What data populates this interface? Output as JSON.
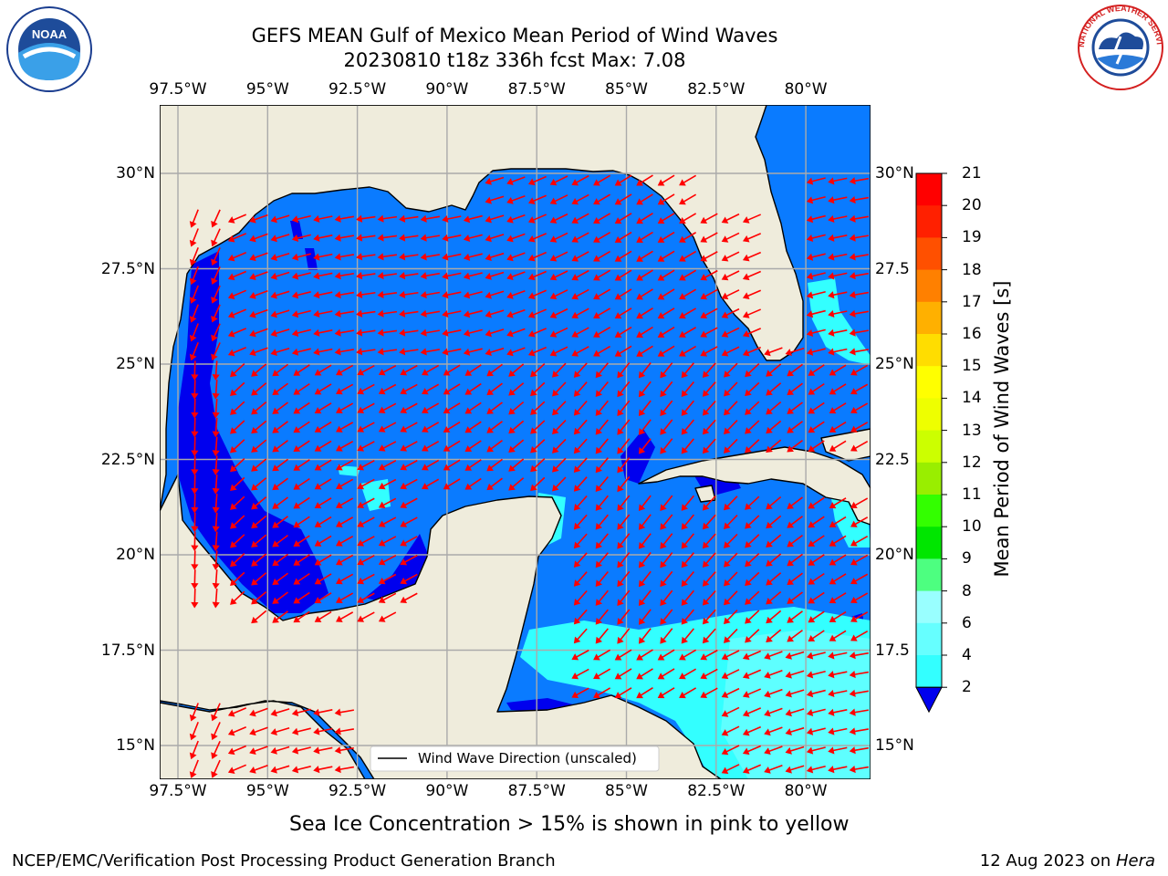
{
  "header": {
    "title_line1": "GEFS MEAN Gulf of Mexico Mean Period of Wind Waves",
    "title_line2": "20230810 t18z 336h fcst   Max: 7.08"
  },
  "logos": {
    "left": "NOAA",
    "right": "NATIONAL WEATHER SERVICE"
  },
  "map": {
    "lon_ticks": [
      "97.5°W",
      "95°W",
      "92.5°W",
      "90°W",
      "87.5°W",
      "85°W",
      "82.5°W",
      "80°W"
    ],
    "lat_ticks_left": [
      "30°N",
      "27.5°N",
      "25°N",
      "22.5°N",
      "20°N",
      "17.5°N",
      "15°N"
    ],
    "lat_ticks_right": [
      "30°N",
      "27.5",
      "25°N",
      "22.5",
      "20°N",
      "17.5",
      "15°N"
    ],
    "legend_label": "Wind Wave Direction (unscaled)",
    "land_color": "#efecdc",
    "sea_color": "#0a7bff",
    "arrow_color": "#ff0000"
  },
  "colorbar": {
    "label": "Mean Period of Wind Waves [s]",
    "ticks": [
      "2",
      "4",
      "6",
      "8",
      "9",
      "10",
      "11",
      "12",
      "13",
      "14",
      "15",
      "16",
      "17",
      "18",
      "19",
      "20",
      "21"
    ],
    "colors": [
      "#0066ff",
      "#00e5ff",
      "#33ffff",
      "#66ffff",
      "#99ffff",
      "#4dff80",
      "#00e600",
      "#33ff00",
      "#99ee00",
      "#ccff00",
      "#eeff00",
      "#ffff00",
      "#ffdd00",
      "#ffb000",
      "#ff8000",
      "#ff5000",
      "#ff2000",
      "#ff0000"
    ],
    "under_color": "#0000ee"
  },
  "footnote": "Sea Ice Concentration > 15% is shown in pink to yellow",
  "footer": {
    "left": "NCEP/EMC/Verification Post Processing Product Generation Branch",
    "right_date": "12 Aug 2023 on ",
    "right_host": "Hera"
  }
}
